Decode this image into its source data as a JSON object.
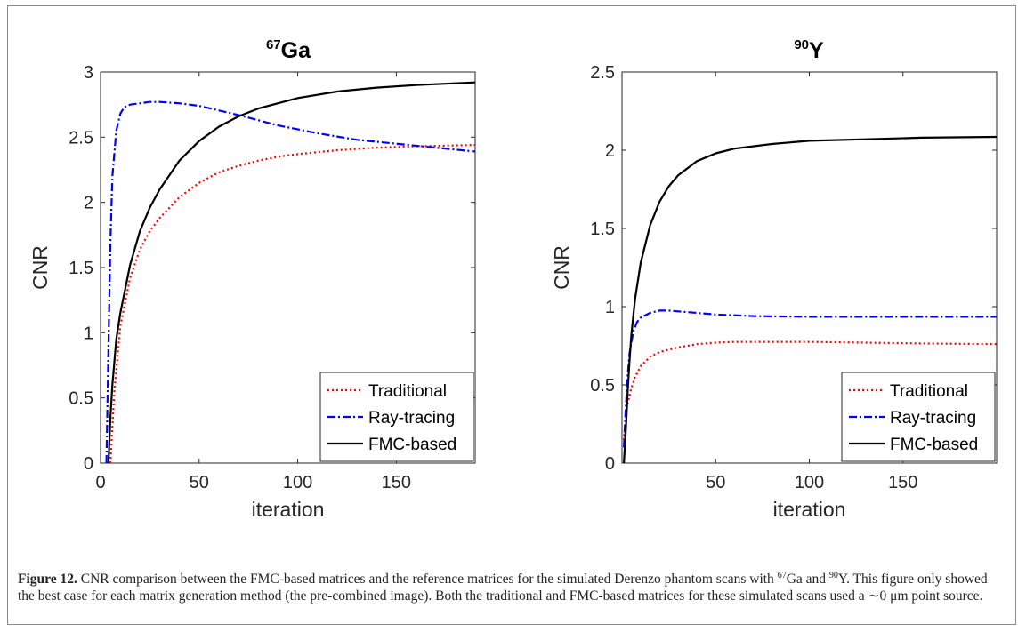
{
  "chart_data": [
    {
      "type": "line",
      "title": "Ga",
      "title_superscript": "67",
      "xlabel": "iteration",
      "ylabel": "CNR",
      "xlim": [
        0,
        190
      ],
      "ylim": [
        0,
        3
      ],
      "xticks": [
        0,
        50,
        100,
        150
      ],
      "yticks": [
        0,
        0.5,
        1,
        1.5,
        2,
        2.5,
        3
      ],
      "ytick_labels": [
        "0",
        "0.5",
        "1",
        "1.5",
        "2",
        "2.5",
        "3"
      ],
      "legend_position": "bottom-right",
      "grid": false,
      "series": [
        {
          "name": "Traditional",
          "color": "#ff0000",
          "style": "dotted",
          "x": [
            5,
            7,
            10,
            15,
            20,
            25,
            30,
            40,
            50,
            60,
            70,
            80,
            90,
            100,
            120,
            140,
            160,
            190
          ],
          "y": [
            0,
            0.55,
            1.05,
            1.42,
            1.64,
            1.78,
            1.88,
            2.04,
            2.15,
            2.23,
            2.28,
            2.32,
            2.35,
            2.37,
            2.4,
            2.42,
            2.43,
            2.44
          ]
        },
        {
          "name": "Ray-tracing",
          "color": "#0000ff",
          "style": "dashdot",
          "x": [
            3,
            4,
            5,
            6,
            8,
            10,
            12,
            15,
            20,
            25,
            30,
            40,
            50,
            70,
            90,
            110,
            130,
            150,
            170,
            190
          ],
          "y": [
            0,
            0.9,
            1.7,
            2.2,
            2.55,
            2.68,
            2.73,
            2.75,
            2.76,
            2.77,
            2.77,
            2.76,
            2.74,
            2.67,
            2.59,
            2.53,
            2.48,
            2.45,
            2.42,
            2.39
          ]
        },
        {
          "name": "FMC-based",
          "color": "#000000",
          "style": "solid",
          "x": [
            4,
            5,
            6,
            8,
            10,
            15,
            20,
            25,
            30,
            40,
            50,
            60,
            70,
            80,
            90,
            100,
            120,
            140,
            160,
            190
          ],
          "y": [
            0,
            0.35,
            0.6,
            0.95,
            1.15,
            1.52,
            1.78,
            1.96,
            2.1,
            2.32,
            2.47,
            2.58,
            2.66,
            2.72,
            2.76,
            2.8,
            2.85,
            2.88,
            2.9,
            2.92
          ]
        }
      ]
    },
    {
      "type": "line",
      "title": "Y",
      "title_superscript": "90",
      "xlabel": "iteration",
      "ylabel": "CNR",
      "xlim": [
        0,
        200
      ],
      "ylim": [
        0,
        2.5
      ],
      "xticks": [
        50,
        100,
        150
      ],
      "yticks": [
        0,
        0.5,
        1,
        1.5,
        2,
        2.5
      ],
      "ytick_labels": [
        "0",
        "0.5",
        "1",
        "1.5",
        "2",
        "2.5"
      ],
      "legend_position": "bottom-right",
      "grid": false,
      "series": [
        {
          "name": "Traditional",
          "color": "#ff0000",
          "style": "dotted",
          "x": [
            1,
            2,
            3,
            5,
            7,
            10,
            15,
            20,
            30,
            40,
            50,
            60,
            80,
            100,
            130,
            160,
            200
          ],
          "y": [
            0.15,
            0.3,
            0.38,
            0.48,
            0.55,
            0.62,
            0.68,
            0.71,
            0.74,
            0.76,
            0.77,
            0.775,
            0.775,
            0.775,
            0.77,
            0.765,
            0.76
          ]
        },
        {
          "name": "Ray-tracing",
          "color": "#0000ff",
          "style": "dashdot",
          "x": [
            1,
            2,
            3,
            4,
            6,
            8,
            10,
            15,
            20,
            25,
            30,
            40,
            50,
            70,
            100,
            130,
            160,
            200
          ],
          "y": [
            0.1,
            0.35,
            0.55,
            0.7,
            0.84,
            0.9,
            0.93,
            0.96,
            0.975,
            0.975,
            0.97,
            0.96,
            0.95,
            0.94,
            0.935,
            0.935,
            0.935,
            0.935
          ]
        },
        {
          "name": "FMC-based",
          "color": "#000000",
          "style": "solid",
          "x": [
            1,
            2,
            3,
            4,
            5,
            7,
            10,
            15,
            20,
            25,
            30,
            40,
            50,
            60,
            80,
            100,
            130,
            160,
            200
          ],
          "y": [
            0,
            0.2,
            0.45,
            0.65,
            0.82,
            1.05,
            1.28,
            1.52,
            1.67,
            1.77,
            1.84,
            1.93,
            1.98,
            2.01,
            2.04,
            2.06,
            2.07,
            2.08,
            2.085
          ]
        }
      ]
    }
  ],
  "caption": {
    "label": "Figure 12.",
    "line1a": " CNR comparison between the FMC-based matrices and the reference matrices for the simulated Derenzo phantom scans",
    "line2_with": "with ",
    "sup_ga": "67",
    "ga": "Ga and ",
    "sup_y": "90",
    "rest": "Y. This figure only showed the best case for each matrix generation method (the pre-combined image). Both the traditional and FMC-based matrices for these simulated scans used a ∼0 μm point source."
  }
}
